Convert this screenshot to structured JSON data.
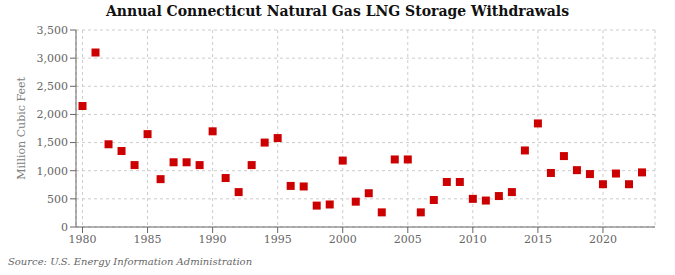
{
  "chart_data": {
    "type": "scatter",
    "title": "Annual Connecticut Natural Gas LNG Storage Withdrawals",
    "ylabel": "Million Cubic Feet",
    "source": "Source: U.S. Energy Information Administration",
    "x": [
      1980,
      1981,
      1982,
      1983,
      1984,
      1985,
      1986,
      1987,
      1988,
      1989,
      1990,
      1991,
      1992,
      1993,
      1994,
      1995,
      1996,
      1997,
      1998,
      1999,
      2000,
      2001,
      2002,
      2003,
      2004,
      2005,
      2006,
      2007,
      2008,
      2009,
      2010,
      2011,
      2012,
      2013,
      2014,
      2015,
      2016,
      2017,
      2018,
      2019,
      2020,
      2021,
      2022,
      2023
    ],
    "values": [
      2150,
      3100,
      1470,
      1350,
      1100,
      1650,
      850,
      1150,
      1150,
      1100,
      1700,
      870,
      620,
      1100,
      1500,
      1580,
      730,
      720,
      380,
      400,
      1180,
      450,
      600,
      260,
      1200,
      1200,
      260,
      480,
      800,
      800,
      500,
      470,
      550,
      620,
      1360,
      1840,
      960,
      1260,
      1010,
      940,
      760,
      950,
      760,
      970
    ],
    "color": "#cc0000",
    "marker": "square",
    "grid": true,
    "xlim": [
      1979.5,
      2024
    ],
    "xticks": [
      1980,
      1985,
      1990,
      1995,
      2000,
      2005,
      2010,
      2015,
      2020
    ],
    "ylim": [
      0,
      3500
    ],
    "yticks": [
      0,
      500,
      {
        "value": 1000,
        "label": "1,000"
      },
      {
        "value": 1500,
        "label": "1,500"
      },
      {
        "value": 2000,
        "label": "2,000"
      },
      {
        "value": 2500,
        "label": "2,500"
      },
      {
        "value": 3000,
        "label": "3,000"
      },
      {
        "value": 3500,
        "label": "3,500"
      }
    ]
  }
}
